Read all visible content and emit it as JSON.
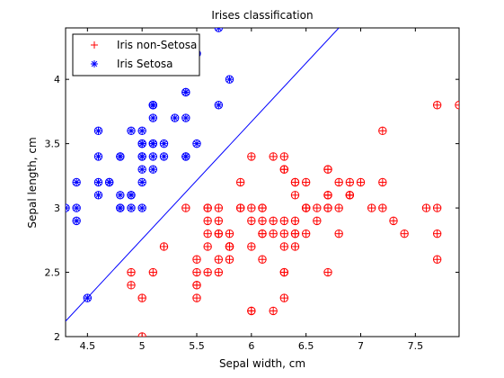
{
  "chart_data": {
    "type": "scatter",
    "title": "Irises classification",
    "xlabel": "Sepal width, cm",
    "ylabel": "Sepal length, cm",
    "xlim": [
      4.3,
      7.9
    ],
    "ylim": [
      2,
      4.4
    ],
    "xticks": [
      4.5,
      5,
      5.5,
      6,
      6.5,
      7,
      7.5
    ],
    "yticks": [
      2,
      2.5,
      3,
      3.5,
      4
    ],
    "xtick_labels": [
      "4.5",
      "5",
      "5.5",
      "6",
      "6.5",
      "7",
      "7.5"
    ],
    "ytick_labels": [
      "2",
      "2.5",
      "3",
      "3.5",
      "4"
    ],
    "grid": false,
    "legend": {
      "position": "top-left"
    },
    "boundary_line": {
      "x": [
        4.3,
        6.8
      ],
      "y": [
        2.12,
        4.4
      ],
      "color": "#0000ff"
    },
    "series": [
      {
        "name": "Iris non-Setosa",
        "marker": "+",
        "color": "#ff0000",
        "x": [
          7.0,
          6.4,
          6.9,
          5.5,
          6.5,
          5.7,
          6.3,
          4.9,
          6.6,
          5.2,
          5.0,
          5.9,
          6.0,
          6.1,
          5.6,
          6.7,
          5.6,
          5.8,
          6.2,
          5.6,
          5.9,
          6.1,
          6.3,
          6.1,
          6.4,
          6.6,
          6.8,
          6.7,
          6.0,
          5.7,
          5.5,
          5.5,
          5.8,
          6.0,
          5.4,
          6.0,
          6.7,
          6.3,
          5.6,
          5.5,
          5.5,
          6.1,
          5.8,
          5.0,
          5.6,
          5.7,
          5.7,
          6.2,
          5.1,
          5.7,
          6.3,
          5.8,
          7.1,
          6.3,
          6.5,
          7.6,
          4.9,
          7.3,
          6.7,
          7.2,
          6.5,
          6.4,
          6.8,
          5.7,
          5.8,
          6.4,
          6.5,
          7.7,
          7.7,
          6.0,
          6.9,
          5.6,
          7.7,
          6.3,
          6.7,
          7.2,
          6.2,
          6.1,
          6.4,
          7.2,
          7.4,
          7.9,
          6.4,
          6.3,
          6.1,
          7.7,
          6.3,
          6.4,
          6.0,
          6.9,
          6.7,
          6.9,
          5.8,
          6.8,
          6.7,
          6.7,
          6.3,
          6.5,
          6.2,
          5.9
        ],
        "y": [
          3.2,
          3.2,
          3.1,
          2.3,
          2.8,
          2.8,
          3.3,
          2.4,
          2.9,
          2.7,
          2.0,
          3.0,
          2.2,
          2.9,
          2.9,
          3.1,
          3.0,
          2.7,
          2.2,
          2.5,
          3.2,
          2.8,
          2.5,
          2.8,
          2.9,
          3.0,
          2.8,
          3.0,
          2.9,
          2.6,
          2.4,
          2.4,
          2.7,
          2.7,
          3.0,
          3.4,
          3.1,
          2.3,
          3.0,
          2.5,
          2.6,
          3.0,
          2.6,
          2.3,
          2.7,
          3.0,
          2.9,
          2.9,
          2.5,
          2.8,
          3.3,
          2.7,
          3.0,
          2.9,
          3.0,
          3.0,
          2.5,
          2.9,
          2.5,
          3.6,
          3.2,
          2.7,
          3.0,
          2.5,
          2.8,
          3.2,
          3.0,
          3.8,
          2.6,
          2.2,
          3.2,
          2.8,
          2.8,
          2.7,
          3.3,
          3.2,
          2.8,
          3.0,
          2.8,
          3.0,
          2.8,
          3.8,
          2.8,
          2.8,
          2.6,
          3.0,
          3.4,
          3.1,
          3.0,
          3.1,
          3.1,
          3.1,
          2.7,
          3.2,
          3.3,
          3.0,
          2.5,
          3.0,
          3.4,
          3.0
        ]
      },
      {
        "name": "Iris Setosa",
        "marker": "*",
        "color": "#0000ff",
        "x": [
          5.1,
          4.9,
          4.7,
          4.6,
          5.0,
          5.4,
          4.6,
          5.0,
          4.4,
          4.9,
          5.4,
          4.8,
          4.8,
          4.3,
          5.8,
          5.7,
          5.4,
          5.1,
          5.7,
          5.1,
          5.4,
          5.1,
          4.6,
          5.1,
          4.8,
          5.0,
          5.0,
          5.2,
          5.2,
          4.7,
          4.8,
          5.4,
          5.2,
          5.5,
          4.9,
          5.0,
          5.5,
          4.9,
          4.4,
          5.1,
          5.0,
          4.5,
          4.4,
          5.0,
          5.1,
          4.8,
          5.1,
          4.6,
          5.3,
          5.0
        ],
        "y": [
          3.5,
          3.0,
          3.2,
          3.1,
          3.6,
          3.9,
          3.4,
          3.4,
          2.9,
          3.1,
          3.7,
          3.4,
          3.0,
          3.0,
          4.0,
          4.4,
          3.9,
          3.5,
          3.8,
          3.8,
          3.4,
          3.7,
          3.6,
          3.3,
          3.4,
          3.0,
          3.4,
          3.5,
          3.4,
          3.2,
          3.1,
          3.4,
          4.1,
          4.2,
          3.1,
          3.2,
          3.5,
          3.6,
          3.0,
          3.4,
          3.5,
          2.3,
          3.2,
          3.5,
          3.8,
          3.0,
          3.8,
          3.2,
          3.7,
          3.3
        ]
      }
    ]
  }
}
